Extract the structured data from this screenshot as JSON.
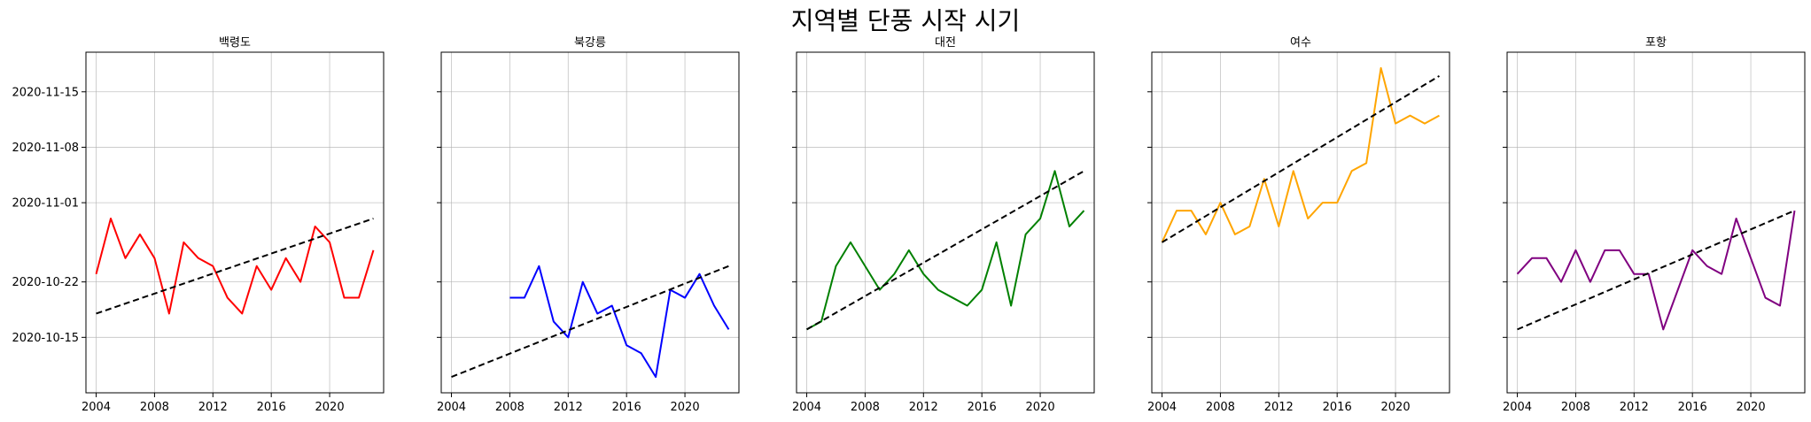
{
  "title": "지역별 단풍 시작 시기",
  "chart_data": [
    {
      "type": "line",
      "title": "백령도",
      "color": "#ff0000",
      "show_y_labels": true,
      "xlim": [
        2003.3,
        2023.7
      ],
      "ylim": [
        "2020-10-08",
        "2020-11-20"
      ],
      "xticks": [
        2004,
        2008,
        2012,
        2016,
        2020
      ],
      "yticks": [
        "2020-10-15",
        "2020-10-22",
        "2020-11-01",
        "2020-11-08",
        "2020-11-15"
      ],
      "grid": true,
      "series": [
        {
          "x": [
            2004,
            2005,
            2006,
            2007,
            2008,
            2009,
            2010,
            2011,
            2012,
            2013,
            2014,
            2015,
            2016,
            2017,
            2018,
            2019,
            2020,
            2021,
            2022,
            2023
          ],
          "y": [
            "2020-10-23",
            "2020-10-30",
            "2020-10-25",
            "2020-10-28",
            "2020-10-25",
            "2020-10-18",
            "2020-10-27",
            "2020-10-25",
            "2020-10-24",
            "2020-10-20",
            "2020-10-18",
            "2020-10-24",
            "2020-10-21",
            "2020-10-25",
            "2020-10-22",
            "2020-10-29",
            "2020-10-27",
            "2020-10-20",
            "2020-10-20",
            "2020-10-26"
          ]
        }
      ],
      "trend": {
        "x": [
          2004,
          2023
        ],
        "y": [
          "2020-10-18",
          "2020-10-30"
        ]
      }
    },
    {
      "type": "line",
      "title": "북강릉",
      "color": "#0000ff",
      "show_y_labels": false,
      "xlim": [
        2003.3,
        2023.7
      ],
      "ylim": [
        "2020-10-08",
        "2020-11-20"
      ],
      "xticks": [
        2004,
        2008,
        2012,
        2016,
        2020
      ],
      "yticks": [
        "2020-10-15",
        "2020-10-22",
        "2020-11-01",
        "2020-11-08",
        "2020-11-15"
      ],
      "grid": true,
      "series": [
        {
          "x": [
            2008,
            2009,
            2010,
            2011,
            2012,
            2013,
            2014,
            2015,
            2016,
            2017,
            2018,
            2019,
            2020,
            2021,
            2022,
            2023
          ],
          "y": [
            "2020-10-20",
            "2020-10-20",
            "2020-10-24",
            "2020-10-17",
            "2020-10-15",
            "2020-10-22",
            "2020-10-18",
            "2020-10-19",
            "2020-10-14",
            "2020-10-13",
            "2020-10-10",
            "2020-10-21",
            "2020-10-20",
            "2020-10-23",
            "2020-10-19",
            "2020-10-16"
          ]
        }
      ],
      "trend": {
        "x": [
          2004,
          2023
        ],
        "y": [
          "2020-10-10",
          "2020-10-24"
        ]
      }
    },
    {
      "type": "line",
      "title": "대전",
      "color": "#008000",
      "show_y_labels": false,
      "xlim": [
        2003.3,
        2023.7
      ],
      "ylim": [
        "2020-10-08",
        "2020-11-20"
      ],
      "xticks": [
        2004,
        2008,
        2012,
        2016,
        2020
      ],
      "yticks": [
        "2020-10-15",
        "2020-10-22",
        "2020-11-01",
        "2020-11-08",
        "2020-11-15"
      ],
      "grid": true,
      "series": [
        {
          "x": [
            2004,
            2005,
            2006,
            2007,
            2008,
            2009,
            2010,
            2011,
            2012,
            2013,
            2014,
            2015,
            2016,
            2017,
            2018,
            2019,
            2020,
            2021,
            2022,
            2023
          ],
          "y": [
            "2020-10-16",
            "2020-10-17",
            "2020-10-24",
            "2020-10-27",
            "2020-10-24",
            "2020-10-21",
            "2020-10-23",
            "2020-10-26",
            "2020-10-23",
            "2020-10-21",
            "2020-10-20",
            "2020-10-19",
            "2020-10-21",
            "2020-10-27",
            "2020-10-19",
            "2020-10-28",
            "2020-10-30",
            "2020-11-05",
            "2020-10-29",
            "2020-10-31"
          ]
        }
      ],
      "trend": {
        "x": [
          2004,
          2023
        ],
        "y": [
          "2020-10-16",
          "2020-11-05"
        ]
      }
    },
    {
      "type": "line",
      "title": "여수",
      "color": "#ffa500",
      "show_y_labels": false,
      "xlim": [
        2003.3,
        2023.7
      ],
      "ylim": [
        "2020-10-08",
        "2020-11-20"
      ],
      "xticks": [
        2004,
        2008,
        2012,
        2016,
        2020
      ],
      "yticks": [
        "2020-10-15",
        "2020-10-22",
        "2020-11-01",
        "2020-11-08",
        "2020-11-15"
      ],
      "grid": true,
      "series": [
        {
          "x": [
            2004,
            2005,
            2006,
            2007,
            2008,
            2009,
            2010,
            2011,
            2012,
            2013,
            2014,
            2015,
            2016,
            2017,
            2018,
            2019,
            2020,
            2021,
            2022,
            2023
          ],
          "y": [
            "2020-10-27",
            "2020-10-31",
            "2020-10-31",
            "2020-10-28",
            "2020-11-01",
            "2020-10-28",
            "2020-10-29",
            "2020-11-04",
            "2020-10-29",
            "2020-11-05",
            "2020-10-30",
            "2020-11-01",
            "2020-11-01",
            "2020-11-05",
            "2020-11-06",
            "2020-11-18",
            "2020-11-11",
            "2020-11-12",
            "2020-11-11",
            "2020-11-12"
          ]
        }
      ],
      "trend": {
        "x": [
          2004,
          2023
        ],
        "y": [
          "2020-10-27",
          "2020-11-17"
        ]
      }
    },
    {
      "type": "line",
      "title": "포항",
      "color": "#800080",
      "show_y_labels": false,
      "xlim": [
        2003.3,
        2023.7
      ],
      "ylim": [
        "2020-10-08",
        "2020-11-20"
      ],
      "xticks": [
        2004,
        2008,
        2012,
        2016,
        2020
      ],
      "yticks": [
        "2020-10-15",
        "2020-10-22",
        "2020-11-01",
        "2020-11-08",
        "2020-11-15"
      ],
      "grid": true,
      "series": [
        {
          "x": [
            2004,
            2005,
            2006,
            2007,
            2008,
            2009,
            2010,
            2011,
            2012,
            2013,
            2014,
            2015,
            2016,
            2017,
            2018,
            2019,
            2020,
            2021,
            2022,
            2023
          ],
          "y": [
            "2020-10-23",
            "2020-10-25",
            "2020-10-25",
            "2020-10-22",
            "2020-10-26",
            "2020-10-22",
            "2020-10-26",
            "2020-10-26",
            "2020-10-23",
            "2020-10-23",
            "2020-10-16",
            "2020-10-21",
            "2020-10-26",
            "2020-10-24",
            "2020-10-23",
            "2020-10-30",
            "2020-10-25",
            "2020-10-20",
            "2020-10-19",
            "2020-10-31"
          ]
        }
      ],
      "trend": {
        "x": [
          2004,
          2023
        ],
        "y": [
          "2020-10-16",
          "2020-10-31"
        ]
      }
    }
  ]
}
